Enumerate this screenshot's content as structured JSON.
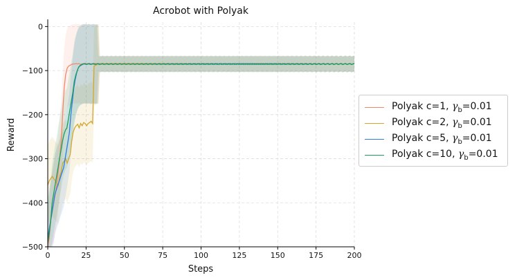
{
  "chart_data": {
    "type": "line",
    "title": "Acrobot with Polyak",
    "xlabel": "Steps",
    "ylabel": "Reward",
    "xlim": [
      0,
      200
    ],
    "ylim": [
      -500,
      10
    ],
    "xticks": [
      0,
      25,
      50,
      75,
      100,
      125,
      150,
      175,
      200
    ],
    "yticks": [
      0,
      -100,
      -200,
      -300,
      -400,
      -500
    ],
    "grid": true,
    "legend_position": "right-outside",
    "series": [
      {
        "name": "Polyak c=1, γb=0.01",
        "legend_text": "Polyak c=1, ",
        "gamma_sub": "b",
        "gamma_val": "=0.01",
        "color": "#f4876b",
        "values": [
          -500,
          -480,
          -440,
          -420,
          -400,
          -380,
          -360,
          -330,
          -300,
          -260,
          -200,
          -140,
          -110,
          -95,
          -90,
          -88,
          -86,
          -85,
          -85,
          -84,
          -85,
          -84,
          -86,
          -85,
          -84,
          -86,
          -85,
          -84,
          -86,
          -85,
          -84,
          -86,
          -84,
          -85,
          -86,
          -84,
          -86,
          -85,
          -84,
          -86,
          -85,
          -84,
          -86,
          -85,
          -84,
          -86,
          -85,
          -84,
          -86,
          -85,
          -84,
          -86,
          -85,
          -84,
          -86,
          -85,
          -84,
          -86,
          -85,
          -84,
          -86,
          -85,
          -84,
          -86,
          -85,
          -84,
          -86,
          -85,
          -84,
          -86,
          -85,
          -84,
          -86,
          -85,
          -84,
          -86,
          -85,
          -84,
          -86,
          -85,
          -84,
          -86,
          -85,
          -84,
          -86,
          -85,
          -84,
          -86,
          -85,
          -84,
          -86,
          -85,
          -84,
          -86,
          -85,
          -84,
          -86,
          -85,
          -84,
          -86,
          -85,
          -84,
          -86,
          -85,
          -84,
          -86,
          -85,
          -84,
          -86,
          -85,
          -84,
          -86,
          -85,
          -84,
          -86,
          -85,
          -84,
          -86,
          -85,
          -84,
          -86,
          -85,
          -84,
          -86,
          -85,
          -84,
          -86,
          -85,
          -84,
          -86,
          -85,
          -84,
          -86,
          -85,
          -84,
          -86,
          -85,
          -84,
          -86,
          -85,
          -84,
          -86,
          -85,
          -84,
          -86,
          -85,
          -84,
          -86,
          -85,
          -84,
          -86,
          -85,
          -84,
          -86,
          -85,
          -84,
          -86,
          -85,
          -84,
          -86,
          -85,
          -84,
          -86,
          -85,
          -84,
          -86,
          -85,
          -84,
          -86,
          -85,
          -84,
          -86,
          -85,
          -84,
          -86,
          -85,
          -84,
          -86,
          -85,
          -84,
          -86,
          -85,
          -84,
          -86,
          -85,
          -84,
          -86,
          -85,
          -84,
          -86,
          -85,
          -84,
          -86,
          -85,
          -84,
          -86,
          -85,
          -84,
          -86,
          -85,
          -84,
          -86,
          -85,
          -84,
          -86,
          -85,
          -84
        ]
      },
      {
        "name": "Polyak c=2, γb=0.01",
        "legend_text": "Polyak c=2, ",
        "gamma_sub": "b",
        "gamma_val": "=0.01",
        "color": "#d4a72c",
        "values": [
          -360,
          -350,
          -345,
          -340,
          -345,
          -350,
          -355,
          -360,
          -340,
          -330,
          -310,
          -305,
          -300,
          -310,
          -300,
          -290,
          -260,
          -240,
          -230,
          -225,
          -222,
          -230,
          -220,
          -225,
          -218,
          -220,
          -225,
          -220,
          -218,
          -215,
          -220,
          -90,
          -88,
          -86,
          -85,
          -84,
          -86,
          -84,
          -85,
          -86,
          -84,
          -86,
          -85,
          -84,
          -86,
          -85,
          -84,
          -86,
          -85,
          -84,
          -86,
          -85,
          -84,
          -86,
          -85,
          -84,
          -86,
          -85,
          -84,
          -86,
          -85,
          -84,
          -86,
          -85,
          -84,
          -86,
          -85,
          -84,
          -86,
          -85,
          -84,
          -86,
          -85,
          -84,
          -86,
          -85,
          -84,
          -86,
          -85,
          -84,
          -86,
          -85,
          -84,
          -86,
          -85,
          -84,
          -86,
          -85,
          -84,
          -86,
          -85,
          -84,
          -86,
          -85,
          -84,
          -86,
          -85,
          -84,
          -86,
          -85,
          -84,
          -86,
          -85,
          -84,
          -86,
          -85,
          -84,
          -86,
          -85,
          -84,
          -86,
          -85,
          -84,
          -86,
          -85,
          -84,
          -86,
          -85,
          -84,
          -86,
          -85,
          -84,
          -86,
          -85,
          -84,
          -86,
          -85,
          -84,
          -86,
          -85,
          -84,
          -86,
          -85,
          -84,
          -86,
          -85,
          -84,
          -86,
          -85,
          -84,
          -86,
          -85,
          -84,
          -86,
          -85,
          -84,
          -86,
          -85,
          -84,
          -86,
          -85,
          -84,
          -86,
          -85,
          -84,
          -86,
          -85,
          -84,
          -86,
          -85,
          -84,
          -86,
          -85,
          -84,
          -86,
          -85,
          -84,
          -86,
          -85,
          -84,
          -86,
          -85,
          -84,
          -86,
          -85,
          -84,
          -86,
          -85,
          -84,
          -86,
          -85,
          -84,
          -86,
          -85,
          -84,
          -86,
          -85,
          -84,
          -86,
          -85,
          -84,
          -86,
          -85,
          -84,
          -86,
          -85,
          -84,
          -86,
          -85,
          -84,
          -86,
          -85,
          -84,
          -86,
          -85,
          -84
        ]
      },
      {
        "name": "Polyak c=5, γb=0.01",
        "legend_text": "Polyak c=5, ",
        "gamma_sub": "b",
        "gamma_val": "=0.01",
        "color": "#2b7be4",
        "values": [
          -480,
          -460,
          -440,
          -420,
          -400,
          -380,
          -370,
          -360,
          -350,
          -340,
          -330,
          -320,
          -300,
          -280,
          -260,
          -240,
          -200,
          -170,
          -140,
          -120,
          -105,
          -95,
          -90,
          -88,
          -86,
          -85,
          -84,
          -86,
          -85,
          -84,
          -86,
          -85,
          -84,
          -86,
          -85,
          -84,
          -86,
          -85,
          -84,
          -86,
          -85,
          -84,
          -86,
          -85,
          -84,
          -86,
          -85,
          -84,
          -86,
          -85,
          -84,
          -86,
          -85,
          -84,
          -86,
          -85,
          -84,
          -86,
          -85,
          -84,
          -86,
          -85,
          -84,
          -86,
          -85,
          -84,
          -86,
          -85,
          -84,
          -86,
          -85,
          -84,
          -86,
          -85,
          -84,
          -86,
          -85,
          -84,
          -86,
          -85,
          -84,
          -86,
          -85,
          -84,
          -86,
          -85,
          -84,
          -86,
          -85,
          -84,
          -86,
          -85,
          -84,
          -86,
          -85,
          -84,
          -86,
          -85,
          -84,
          -86,
          -85,
          -84,
          -86,
          -85,
          -84,
          -86,
          -85,
          -84,
          -86,
          -85,
          -84,
          -86,
          -85,
          -84,
          -86,
          -85,
          -84,
          -86,
          -85,
          -84,
          -86,
          -85,
          -84,
          -86,
          -85,
          -84,
          -86,
          -85,
          -84,
          -86,
          -85,
          -84,
          -86,
          -85,
          -84,
          -86,
          -85,
          -84,
          -86,
          -85,
          -84,
          -86,
          -85,
          -84,
          -86,
          -85,
          -84,
          -86,
          -85,
          -84,
          -86,
          -85,
          -84,
          -86,
          -85,
          -84,
          -86,
          -85,
          -84,
          -86,
          -85,
          -84,
          -86,
          -85,
          -84,
          -86,
          -85,
          -84,
          -86,
          -85,
          -84,
          -86,
          -85,
          -84,
          -86,
          -85,
          -84,
          -86,
          -85,
          -84,
          -86,
          -85,
          -84,
          -86,
          -85,
          -84,
          -86,
          -85,
          -84,
          -86,
          -85,
          -84,
          -86,
          -85,
          -84,
          -86,
          -85,
          -84,
          -86,
          -85,
          -84,
          -86,
          -85,
          -84,
          -86,
          -85,
          -84,
          -86,
          -85,
          -84,
          -86,
          -85,
          -84
        ]
      },
      {
        "name": "Polyak c=10, γb=0.01",
        "legend_text": "Polyak c=10, ",
        "gamma_sub": "b",
        "gamma_val": "=0.01",
        "color": "#1a9e55",
        "values": [
          -490,
          -470,
          -440,
          -400,
          -380,
          -360,
          -340,
          -320,
          -300,
          -280,
          -260,
          -245,
          -235,
          -230,
          -210,
          -190,
          -170,
          -150,
          -125,
          -110,
          -100,
          -92,
          -88,
          -86,
          -85,
          -84,
          -86,
          -85,
          -84,
          -86,
          -85,
          -84,
          -86,
          -85,
          -84,
          -86,
          -85,
          -84,
          -86,
          -85,
          -84,
          -86,
          -85,
          -84,
          -86,
          -85,
          -84,
          -86,
          -85,
          -84,
          -86,
          -85,
          -84,
          -86,
          -85,
          -84,
          -86,
          -85,
          -84,
          -86,
          -85,
          -84,
          -86,
          -85,
          -84,
          -86,
          -85,
          -84,
          -86,
          -85,
          -84,
          -86,
          -85,
          -84,
          -86,
          -85,
          -84,
          -86,
          -85,
          -84,
          -86,
          -85,
          -84,
          -86,
          -85,
          -84,
          -86,
          -85,
          -84,
          -86,
          -85,
          -84,
          -86,
          -85,
          -84,
          -86,
          -85,
          -84,
          -86,
          -85,
          -84,
          -86,
          -85,
          -84,
          -86,
          -85,
          -84,
          -86,
          -85,
          -84,
          -86,
          -85,
          -84,
          -86,
          -85,
          -84,
          -86,
          -85,
          -84,
          -86,
          -85,
          -84,
          -86,
          -85,
          -84,
          -86,
          -85,
          -84,
          -86,
          -85,
          -84,
          -86,
          -85,
          -84,
          -86,
          -85,
          -84,
          -86,
          -85,
          -84,
          -86,
          -85,
          -84,
          -86,
          -85,
          -84,
          -86,
          -85,
          -84,
          -86,
          -85,
          -84,
          -86,
          -85,
          -84,
          -86,
          -85,
          -84,
          -86,
          -85,
          -84,
          -86,
          -85,
          -84,
          -86,
          -85,
          -84,
          -86,
          -85,
          -84,
          -86,
          -85,
          -84,
          -86,
          -85,
          -84,
          -86,
          -85,
          -84,
          -86,
          -85,
          -84,
          -86,
          -85,
          -84,
          -86,
          -85,
          -84,
          -86,
          -85,
          -84,
          -86,
          -85,
          -84,
          -86,
          -85,
          -84,
          -86,
          -85,
          -84,
          -86,
          -85,
          -84,
          -86,
          -85,
          -84,
          -86,
          -85,
          -84
        ]
      }
    ]
  }
}
